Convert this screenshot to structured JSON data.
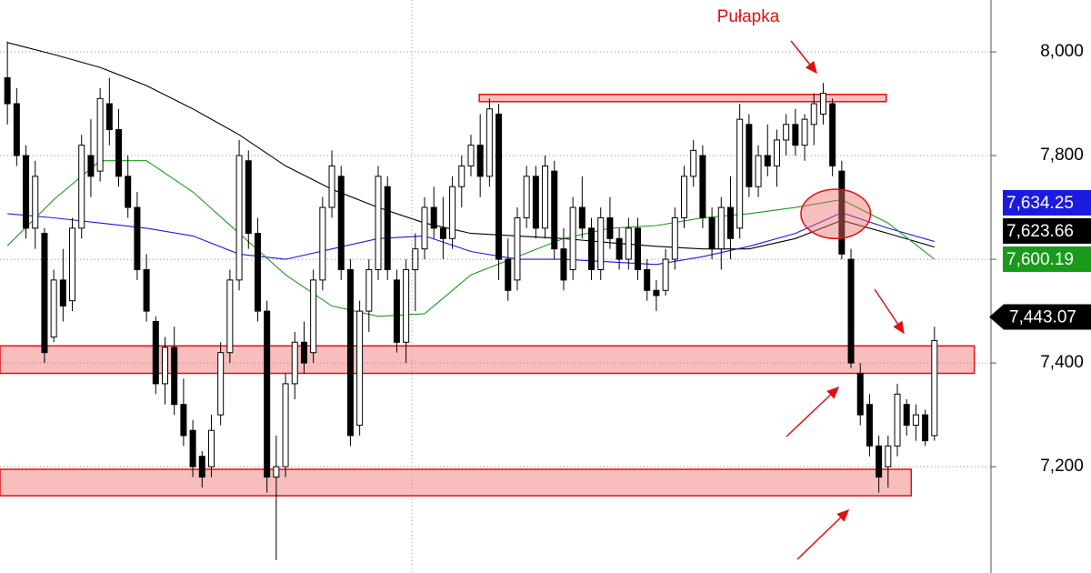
{
  "chart_data": {
    "type": "candlestick",
    "annotation": "Pułapka",
    "ylim": [
      6995,
      8100
    ],
    "xlim": [
      -0.8,
      106.1
    ],
    "yticks": [
      {
        "value": 8000,
        "label": "8,000"
      },
      {
        "value": 7800,
        "label": "7,800"
      },
      {
        "value": 7600,
        "label": "7,600"
      },
      {
        "value": 7400,
        "label": "7,400"
      },
      {
        "value": 7200,
        "label": "7,200"
      }
    ],
    "grid": true,
    "up_color": "#ffffff",
    "down_color": "#000000",
    "ohlc": [
      [
        7950,
        8020,
        7860,
        7900
      ],
      [
        7900,
        7930,
        7780,
        7800
      ],
      [
        7800,
        7820,
        7640,
        7660
      ],
      [
        7660,
        7790,
        7620,
        7760
      ],
      [
        7650,
        7660,
        7400,
        7420
      ],
      [
        7450,
        7580,
        7440,
        7560
      ],
      [
        7560,
        7620,
        7480,
        7510
      ],
      [
        7520,
        7680,
        7500,
        7660
      ],
      [
        7660,
        7840,
        7640,
        7820
      ],
      [
        7800,
        7870,
        7720,
        7760
      ],
      [
        7770,
        7930,
        7750,
        7910
      ],
      [
        7900,
        7950,
        7820,
        7850
      ],
      [
        7850,
        7890,
        7740,
        7760
      ],
      [
        7760,
        7800,
        7680,
        7700
      ],
      [
        7700,
        7730,
        7560,
        7580
      ],
      [
        7580,
        7610,
        7480,
        7500
      ],
      [
        7480,
        7490,
        7340,
        7360
      ],
      [
        7360,
        7450,
        7320,
        7430
      ],
      [
        7430,
        7470,
        7300,
        7320
      ],
      [
        7320,
        7370,
        7240,
        7260
      ],
      [
        7270,
        7290,
        7180,
        7200
      ],
      [
        7220,
        7230,
        7160,
        7180
      ],
      [
        7200,
        7300,
        7180,
        7270
      ],
      [
        7300,
        7440,
        7280,
        7420
      ],
      [
        7420,
        7580,
        7400,
        7560
      ],
      [
        7560,
        7830,
        7540,
        7800
      ],
      [
        7790,
        7810,
        7620,
        7650
      ],
      [
        7650,
        7680,
        7480,
        7500
      ],
      [
        7500,
        7520,
        7150,
        7180
      ],
      [
        7180,
        7260,
        7020,
        7200
      ],
      [
        7200,
        7380,
        7180,
        7360
      ],
      [
        7360,
        7460,
        7330,
        7440
      ],
      [
        7440,
        7480,
        7380,
        7400
      ],
      [
        7420,
        7580,
        7400,
        7560
      ],
      [
        7560,
        7720,
        7540,
        7700
      ],
      [
        7700,
        7810,
        7680,
        7780
      ],
      [
        7760,
        7780,
        7560,
        7580
      ],
      [
        7580,
        7600,
        7240,
        7260
      ],
      [
        7280,
        7520,
        7260,
        7500
      ],
      [
        7500,
        7600,
        7460,
        7580
      ],
      [
        7580,
        7780,
        7560,
        7760
      ],
      [
        7740,
        7760,
        7560,
        7580
      ],
      [
        7560,
        7580,
        7420,
        7440
      ],
      [
        7440,
        7600,
        7400,
        7580
      ],
      [
        7580,
        7650,
        7500,
        7620
      ],
      [
        7620,
        7720,
        7600,
        7700
      ],
      [
        7700,
        7740,
        7640,
        7660
      ],
      [
        7660,
        7720,
        7600,
        7640
      ],
      [
        7640,
        7760,
        7620,
        7740
      ],
      [
        7740,
        7800,
        7700,
        7780
      ],
      [
        7780,
        7840,
        7760,
        7820
      ],
      [
        7820,
        7880,
        7720,
        7760
      ],
      [
        7760,
        7910,
        7740,
        7890
      ],
      [
        7880,
        7900,
        7560,
        7600
      ],
      [
        7600,
        7640,
        7520,
        7540
      ],
      [
        7560,
        7700,
        7540,
        7680
      ],
      [
        7680,
        7780,
        7660,
        7760
      ],
      [
        7760,
        7780,
        7640,
        7660
      ],
      [
        7660,
        7800,
        7640,
        7780
      ],
      [
        7770,
        7790,
        7600,
        7620
      ],
      [
        7620,
        7660,
        7540,
        7560
      ],
      [
        7580,
        7720,
        7560,
        7700
      ],
      [
        7700,
        7760,
        7640,
        7660
      ],
      [
        7660,
        7680,
        7560,
        7580
      ],
      [
        7580,
        7700,
        7560,
        7680
      ],
      [
        7680,
        7720,
        7620,
        7640
      ],
      [
        7640,
        7660,
        7580,
        7600
      ],
      [
        7600,
        7680,
        7580,
        7660
      ],
      [
        7660,
        7680,
        7560,
        7580
      ],
      [
        7580,
        7600,
        7520,
        7540
      ],
      [
        7540,
        7560,
        7500,
        7530
      ],
      [
        7540,
        7620,
        7530,
        7600
      ],
      [
        7600,
        7700,
        7580,
        7680
      ],
      [
        7680,
        7780,
        7660,
        7760
      ],
      [
        7760,
        7830,
        7740,
        7810
      ],
      [
        7800,
        7820,
        7660,
        7680
      ],
      [
        7680,
        7700,
        7600,
        7620
      ],
      [
        7620,
        7720,
        7580,
        7700
      ],
      [
        7700,
        7760,
        7600,
        7640
      ],
      [
        7660,
        7900,
        7640,
        7870
      ],
      [
        7860,
        7880,
        7720,
        7740
      ],
      [
        7740,
        7820,
        7720,
        7800
      ],
      [
        7800,
        7860,
        7760,
        7780
      ],
      [
        7780,
        7850,
        7740,
        7830
      ],
      [
        7830,
        7880,
        7800,
        7860
      ],
      [
        7860,
        7890,
        7800,
        7820
      ],
      [
        7820,
        7880,
        7790,
        7870
      ],
      [
        7860,
        7920,
        7820,
        7900
      ],
      [
        7880,
        7940,
        7860,
        7920
      ],
      [
        7900,
        7910,
        7760,
        7780
      ],
      [
        7770,
        7790,
        7600,
        7610
      ],
      [
        7600,
        7620,
        7390,
        7400
      ],
      [
        7380,
        7400,
        7280,
        7300
      ],
      [
        7320,
        7340,
        7220,
        7240
      ],
      [
        7240,
        7260,
        7150,
        7180
      ],
      [
        7200,
        7260,
        7160,
        7240
      ],
      [
        7240,
        7360,
        7220,
        7340
      ],
      [
        7320,
        7330,
        7260,
        7280
      ],
      [
        7280,
        7320,
        7250,
        7300
      ],
      [
        7300,
        7310,
        7240,
        7250
      ],
      [
        7260,
        7470,
        7250,
        7443.07
      ]
    ],
    "series": [
      {
        "color": "#000000",
        "x": [
          0,
          5,
          10,
          15,
          20,
          25,
          30,
          35,
          40,
          45,
          50,
          55,
          60,
          65,
          70,
          75,
          80,
          85,
          90,
          95,
          100
        ],
        "values": [
          8018,
          7995,
          7970,
          7935,
          7890,
          7840,
          7780,
          7735,
          7700,
          7670,
          7650,
          7645,
          7640,
          7632,
          7625,
          7620,
          7620,
          7640,
          7675,
          7650,
          7623.66
        ]
      },
      {
        "color": "#1a1ae0",
        "x": [
          0,
          5,
          10,
          15,
          20,
          25,
          30,
          35,
          40,
          45,
          50,
          55,
          60,
          65,
          70,
          75,
          80,
          85,
          90,
          95,
          100
        ],
        "values": [
          7688,
          7680,
          7670,
          7660,
          7645,
          7610,
          7600,
          7620,
          7640,
          7645,
          7615,
          7600,
          7600,
          7595,
          7590,
          7605,
          7625,
          7650,
          7690,
          7660,
          7634.25
        ]
      },
      {
        "color": "#1a9a1a",
        "x": [
          0,
          5,
          10,
          15,
          20,
          25,
          30,
          35,
          40,
          45,
          50,
          55,
          60,
          65,
          70,
          75,
          80,
          85,
          90,
          95,
          100
        ],
        "values": [
          7626,
          7715,
          7790,
          7790,
          7730,
          7650,
          7570,
          7510,
          7490,
          7495,
          7570,
          7605,
          7640,
          7660,
          7665,
          7680,
          7688,
          7700,
          7715,
          7670,
          7600.19
        ]
      }
    ],
    "price_tags": [
      {
        "value": 7634.25,
        "label": "7,634.25",
        "color": "#1a1ae0"
      },
      {
        "value": 7623.66,
        "label": "7,623.66",
        "color": "#000000"
      },
      {
        "value": 7600.19,
        "label": "7,600.19",
        "color": "#1a9a1a"
      }
    ],
    "last_price": {
      "value": 7443.07,
      "label": "7,443.07",
      "color": "#000000"
    },
    "zones": [
      {
        "x": [
          50.9,
          94.8
        ],
        "y": [
          7904,
          7918
        ]
      },
      {
        "x": [
          -0.8,
          104.3
        ],
        "y": [
          7380,
          7433
        ]
      },
      {
        "x": [
          -0.8,
          97.5
        ],
        "y": [
          7144,
          7195
        ]
      }
    ],
    "highlight": {
      "x": [
        85.6,
        93.1
      ],
      "y": [
        7640,
        7735
      ]
    }
  }
}
